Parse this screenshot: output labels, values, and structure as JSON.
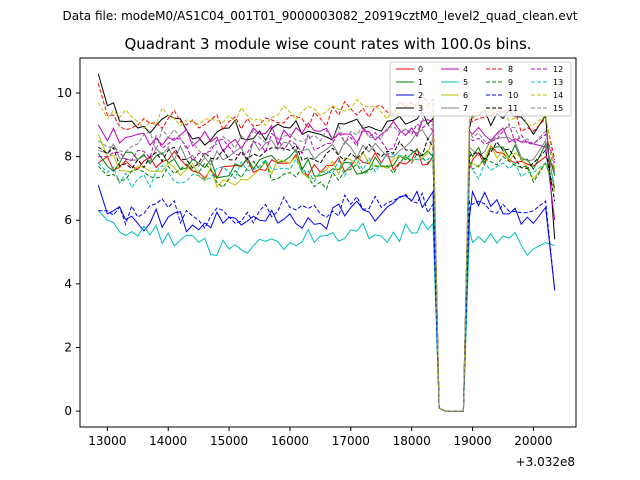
{
  "header": {
    "data_file_label": "Data file: modeM0/AS1C04_001T01_9000003082_20919cztM0_level2_quad_clean.evt"
  },
  "chart_data": {
    "type": "line",
    "title": "Quadrant 3 module wise count rates with 100.0s bins.",
    "xlabel": "",
    "ylabel": "",
    "x_offset_label": "+3.032e8",
    "xlim": [
      12550,
      20700
    ],
    "ylim": [
      -0.5,
      11.1
    ],
    "x_ticks": [
      13000,
      14000,
      15000,
      16000,
      17000,
      18000,
      19000,
      20000
    ],
    "x_tick_labels": [
      "13000",
      "14000",
      "15000",
      "16000",
      "17000",
      "18000",
      "19000",
      "20000"
    ],
    "y_ticks": [
      0,
      2,
      4,
      6,
      8,
      10
    ],
    "y_tick_labels": [
      "0",
      "2",
      "4",
      "6",
      "8",
      "10"
    ],
    "legend_position": "top-right",
    "anchor_x": [
      12850,
      13000,
      13500,
      14000,
      14500,
      15000,
      15500,
      16000,
      16500,
      17000,
      17500,
      18000,
      18350,
      18450,
      18550,
      18700,
      18850,
      18950,
      19000,
      19500,
      20000,
      20200,
      20350
    ],
    "series": [
      {
        "name": "0",
        "color": "#ff0000",
        "dash": "solid",
        "values": [
          7.8,
          8.0,
          7.6,
          7.9,
          7.5,
          7.7,
          7.6,
          7.8,
          7.5,
          7.7,
          7.8,
          7.9,
          8.0,
          0.1,
          0.0,
          0.0,
          0.0,
          7.6,
          7.9,
          8.1,
          7.7,
          8.0,
          7.6
        ]
      },
      {
        "name": "1",
        "color": "#008000",
        "dash": "solid",
        "values": [
          8.1,
          7.7,
          7.9,
          7.8,
          7.8,
          7.4,
          7.9,
          8.0,
          7.4,
          7.8,
          7.7,
          8.1,
          8.0,
          0.1,
          0.0,
          0.0,
          0.0,
          8.2,
          8.0,
          8.3,
          7.6,
          8.4,
          7.4
        ]
      },
      {
        "name": "2",
        "color": "#0000ff",
        "dash": "solid",
        "values": [
          7.1,
          6.2,
          5.9,
          6.1,
          5.7,
          6.1,
          6.0,
          6.2,
          5.9,
          6.4,
          6.2,
          6.6,
          6.9,
          0.1,
          0.0,
          0.0,
          0.0,
          6.1,
          6.9,
          6.2,
          5.9,
          6.4,
          3.8
        ]
      },
      {
        "name": "3",
        "color": "#000000",
        "dash": "solid",
        "values": [
          10.6,
          9.6,
          8.9,
          9.3,
          8.6,
          8.9,
          8.8,
          8.9,
          8.7,
          9.1,
          8.8,
          9.1,
          9.2,
          0.1,
          0.0,
          0.0,
          0.0,
          8.9,
          9.3,
          9.2,
          8.7,
          9.3,
          5.4
        ]
      },
      {
        "name": "4",
        "color": "#bf00bf",
        "dash": "solid",
        "values": [
          9.0,
          8.5,
          8.7,
          8.6,
          8.5,
          8.4,
          8.7,
          8.6,
          8.8,
          8.7,
          8.7,
          8.9,
          9.1,
          0.1,
          0.0,
          0.0,
          0.0,
          8.8,
          8.7,
          8.9,
          8.4,
          8.3,
          6.0
        ]
      },
      {
        "name": "5",
        "color": "#00bfbf",
        "dash": "solid",
        "values": [
          6.3,
          6.0,
          5.5,
          5.6,
          5.3,
          5.1,
          5.4,
          5.3,
          5.5,
          5.7,
          5.5,
          5.6,
          5.9,
          0.1,
          0.0,
          0.0,
          0.0,
          5.7,
          5.3,
          5.5,
          5.1,
          5.3,
          5.2
        ]
      },
      {
        "name": "6",
        "color": "#bfbf00",
        "dash": "solid",
        "values": [
          8.7,
          8.0,
          7.7,
          7.8,
          7.4,
          7.2,
          7.6,
          7.8,
          7.5,
          7.9,
          7.7,
          7.9,
          8.6,
          0.1,
          0.0,
          0.0,
          0.0,
          7.7,
          7.8,
          8.2,
          7.3,
          7.8,
          6.9
        ]
      },
      {
        "name": "7",
        "color": "#808080",
        "dash": "solid",
        "values": [
          8.2,
          8.1,
          7.9,
          8.3,
          7.7,
          8.0,
          8.2,
          8.4,
          8.1,
          8.3,
          8.2,
          8.5,
          8.8,
          0.1,
          0.0,
          0.0,
          0.0,
          8.3,
          8.2,
          8.6,
          7.9,
          8.5,
          7.0
        ]
      },
      {
        "name": "8",
        "color": "#ff0000",
        "dash": "dashed",
        "values": [
          10.3,
          9.3,
          9.0,
          9.2,
          8.9,
          9.1,
          9.0,
          9.3,
          9.2,
          9.5,
          9.6,
          9.7,
          9.8,
          0.1,
          0.0,
          0.0,
          0.0,
          9.2,
          9.1,
          9.4,
          8.8,
          9.2,
          7.9
        ]
      },
      {
        "name": "9",
        "color": "#008000",
        "dash": "dashed",
        "values": [
          7.7,
          7.4,
          7.6,
          7.7,
          7.5,
          7.3,
          7.6,
          7.5,
          7.2,
          7.6,
          7.7,
          7.8,
          8.0,
          0.1,
          0.0,
          0.0,
          0.0,
          7.9,
          7.6,
          8.0,
          7.2,
          7.8,
          7.0
        ]
      },
      {
        "name": "10",
        "color": "#0000ff",
        "dash": "dashed",
        "values": [
          6.3,
          6.3,
          6.1,
          6.4,
          6.0,
          6.1,
          6.3,
          6.4,
          6.2,
          6.5,
          6.4,
          6.6,
          6.5,
          0.1,
          0.0,
          0.0,
          0.0,
          6.6,
          6.5,
          6.5,
          6.3,
          6.6,
          3.8
        ]
      },
      {
        "name": "11",
        "color": "#000000",
        "dash": "dashed",
        "values": [
          8.3,
          8.1,
          7.9,
          8.2,
          7.8,
          7.9,
          8.0,
          8.2,
          7.8,
          8.1,
          8.0,
          8.2,
          8.3,
          0.1,
          0.0,
          0.0,
          0.0,
          8.0,
          8.1,
          8.2,
          7.8,
          8.2,
          6.6
        ]
      },
      {
        "name": "12",
        "color": "#bf00bf",
        "dash": "dashed",
        "values": [
          8.0,
          8.0,
          8.2,
          8.4,
          8.1,
          8.3,
          8.4,
          8.5,
          8.3,
          8.6,
          8.5,
          8.7,
          8.8,
          0.1,
          0.0,
          0.0,
          0.0,
          8.6,
          8.5,
          8.8,
          8.4,
          8.7,
          7.8
        ]
      },
      {
        "name": "13",
        "color": "#00bfbf",
        "dash": "dashed",
        "values": [
          7.8,
          7.5,
          7.3,
          7.5,
          7.4,
          7.5,
          7.7,
          7.6,
          7.5,
          7.8,
          7.8,
          7.9,
          8.1,
          0.1,
          0.0,
          0.0,
          0.0,
          7.8,
          7.6,
          7.8,
          7.5,
          7.8,
          7.2
        ]
      },
      {
        "name": "14",
        "color": "#bfbf00",
        "dash": "dashed",
        "values": [
          9.7,
          9.2,
          9.1,
          9.3,
          9.0,
          9.3,
          9.2,
          9.4,
          9.3,
          9.5,
          9.4,
          9.6,
          9.5,
          0.1,
          0.0,
          0.0,
          0.0,
          9.3,
          9.2,
          9.4,
          9.0,
          9.3,
          7.6
        ]
      },
      {
        "name": "15",
        "color": "#808080",
        "dash": "dashed",
        "values": [
          8.5,
          8.3,
          8.4,
          8.6,
          8.2,
          8.5,
          8.6,
          8.7,
          8.5,
          8.8,
          8.6,
          8.8,
          9.0,
          0.1,
          0.0,
          0.0,
          0.0,
          8.8,
          8.6,
          8.9,
          8.4,
          8.8,
          7.5
        ]
      }
    ]
  }
}
